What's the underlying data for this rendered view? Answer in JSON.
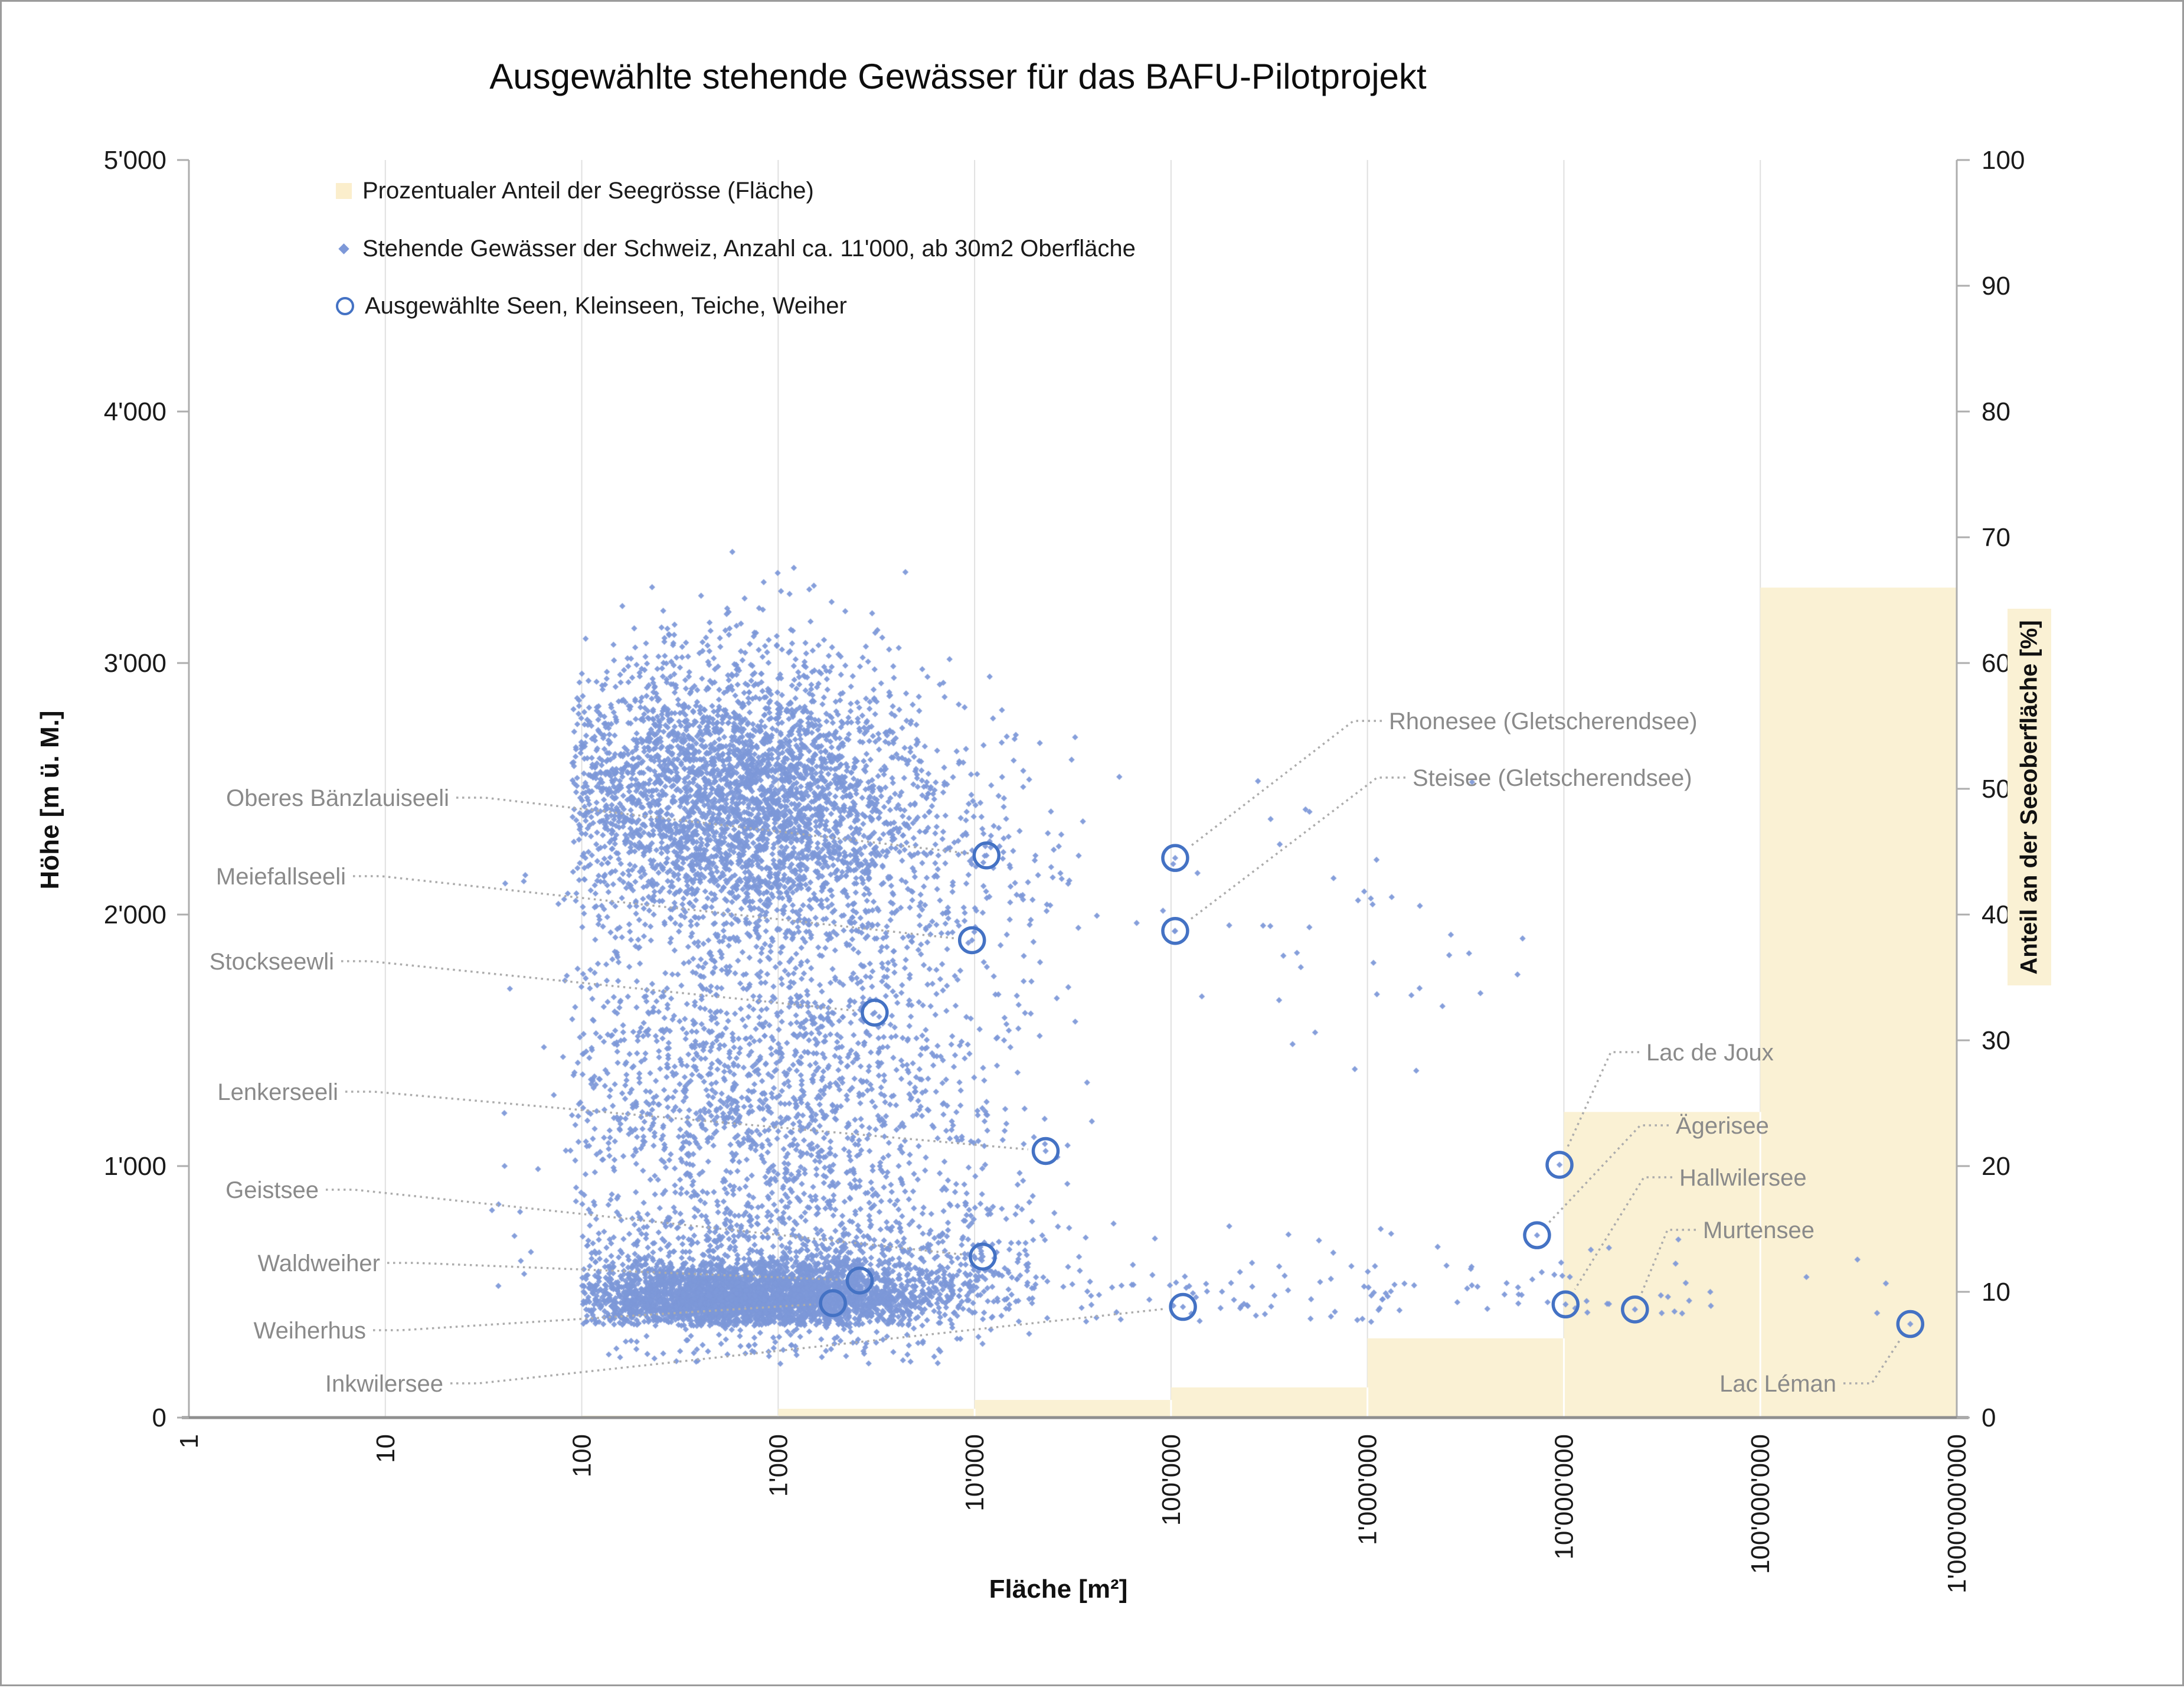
{
  "window": {
    "background": "#FFFFFF",
    "border_color": "#9B9B9B"
  },
  "title": "Ausgewählte stehende Gewässer für das BAFU-Pilotprojekt",
  "legend": {
    "items": [
      {
        "label": "Prozentualer Anteil der Seegrösse (Fläche)",
        "marker": "yellow-square",
        "color": "#FBEECC"
      },
      {
        "label": "Stehende Gewässer der Schweiz, Anzahl ca. 11'000, ab 30m2 Oberfläche",
        "marker": "blue-diamond",
        "color": "#7D98D8"
      },
      {
        "label": "Ausgewählte Seen, Kleinseen, Teiche, Weiher",
        "marker": "blue-ring",
        "color": "#4472C4"
      }
    ]
  },
  "colors": {
    "grid": "#E0E0E0",
    "grid_on_area": "#FFFFFF",
    "axis_line": "#ADADAD",
    "baseline": "#8F8F8F",
    "tick_text": "#1A1A1A",
    "lake_label": "#8A8A8A",
    "connector": "#ACACAC",
    "scatter": "#7D98D8",
    "selected_ring": "#4472C4",
    "area_fill": "#FAF1D4"
  },
  "chart_data": {
    "type": "scatter",
    "x_axis": {
      "label": "Fläche [m²]",
      "scale": "log10",
      "min": 1,
      "max": 1000000000,
      "tick_labels": [
        "1",
        "10",
        "100",
        "1'000",
        "10'000",
        "100'000",
        "1'000'000",
        "10'000'000",
        "100'000'000",
        "1'000'000'000"
      ]
    },
    "y_axis_left": {
      "label": "Höhe [m ü. M.]",
      "min": 0,
      "max": 5000,
      "tick_labels": [
        "0",
        "1'000",
        "2'000",
        "3'000",
        "4'000",
        "5'000"
      ]
    },
    "y_axis_right": {
      "label": "Anteil an der Seeoberfläche [%]",
      "min": 0,
      "max": 100,
      "tick_labels": [
        "0",
        "10",
        "20",
        "30",
        "40",
        "50",
        "60",
        "70",
        "80",
        "90",
        "100"
      ]
    },
    "area_share_steps": {
      "series_name": "Prozentualer Anteil der Seegrösse (Fläche)",
      "bins": [
        {
          "from_m2": 100,
          "to_m2": 1000,
          "percent": 0.15
        },
        {
          "from_m2": 1000,
          "to_m2": 10000,
          "percent": 0.7
        },
        {
          "from_m2": 10000,
          "to_m2": 100000,
          "percent": 1.4
        },
        {
          "from_m2": 100000,
          "to_m2": 1000000,
          "percent": 2.4
        },
        {
          "from_m2": 1000000,
          "to_m2": 10000000,
          "percent": 6.3
        },
        {
          "from_m2": 10000000,
          "to_m2": 100000000,
          "percent": 24.3
        },
        {
          "from_m2": 100000000,
          "to_m2": 1000000000,
          "percent": 66
        }
      ]
    },
    "background_scatter": {
      "series_name": "Stehende Gewässer der Schweiz, Anzahl ca. 11'000, ab 30m2 Oberfläche",
      "approx_count": 11000,
      "seed": 20240613,
      "clusters": [
        {
          "n": 3200,
          "log_area_mean": 2.75,
          "log_area_sd": 0.5,
          "log_area_min": 1.95,
          "log_area_max": 4.6,
          "alt_mean": 2480,
          "alt_sd": 260,
          "alt_min": 1900,
          "alt_max": 3150
        },
        {
          "n": 750,
          "log_area_mean": 3.2,
          "log_area_sd": 0.6,
          "log_area_min": 2.0,
          "log_area_max": 4.85,
          "alt_mean": 2130,
          "alt_sd": 260,
          "alt_min": 1500,
          "alt_max": 2850
        },
        {
          "n": 70,
          "log_area_mean": 2.9,
          "log_area_sd": 0.45,
          "log_area_min": 2.1,
          "log_area_max": 4.0,
          "alt_mean": 3080,
          "alt_sd": 170,
          "alt_min": 2860,
          "alt_max": 3480
        },
        {
          "n": 1500,
          "log_area_mean": 2.9,
          "log_area_sd": 0.62,
          "log_area_min": 1.95,
          "log_area_max": 4.6,
          "alt_mean": 1280,
          "alt_sd": 330,
          "alt_min": 640,
          "alt_max": 1980
        },
        {
          "n": 3300,
          "log_area_mean": 2.85,
          "log_area_sd": 0.48,
          "log_area_min": 2.0,
          "log_area_max": 4.4,
          "alt_mean": 475,
          "alt_sd": 70,
          "alt_min": 365,
          "alt_max": 690
        },
        {
          "n": 950,
          "log_area_mean": 3.1,
          "log_area_sd": 0.65,
          "log_area_min": 2.0,
          "log_area_max": 4.75,
          "alt_mean": 610,
          "alt_sd": 145,
          "alt_min": 380,
          "alt_max": 980
        },
        {
          "n": 110,
          "log_area_mean": 3.0,
          "log_area_sd": 0.6,
          "log_area_min": 2.1,
          "log_area_max": 4.3,
          "alt_mean": 300,
          "alt_sd": 55,
          "alt_min": 200,
          "alt_max": 372
        },
        {
          "n": 125,
          "log_area_mean": 5.6,
          "log_area_sd": 1.15,
          "log_area_min": 4.45,
          "log_area_max": 8.85,
          "alt_mean": 490,
          "alt_sd": 100,
          "alt_min": 375,
          "alt_max": 880
        },
        {
          "n": 42,
          "log_area_mean": 5.9,
          "log_area_sd": 0.55,
          "log_area_min": 4.85,
          "log_area_max": 7.1,
          "alt_mean": 1850,
          "alt_sd": 380,
          "alt_min": 1320,
          "alt_max": 2680
        },
        {
          "n": 28,
          "log_area_mean": 1.8,
          "log_area_sd": 0.18,
          "log_area_min": 1.5,
          "log_area_max": 2.02,
          "alt_mean": 1400,
          "alt_sd": 820,
          "alt_min": 420,
          "alt_max": 2750
        }
      ]
    },
    "selected_lakes": {
      "series_name": "Ausgewählte Seen, Kleinseen, Teiche, Weiher",
      "points": [
        {
          "name": "Oberes Bänzlauiseeli",
          "area_m2": 11500,
          "altitude_m": 2235,
          "label_anchor": "end",
          "label_x": 758,
          "label_y": 1348
        },
        {
          "name": "Meiefallseeli",
          "area_m2": 9700,
          "altitude_m": 1898,
          "label_anchor": "end",
          "label_x": 583,
          "label_y": 1481
        },
        {
          "name": "Stockseewli",
          "area_m2": 3100,
          "altitude_m": 1610,
          "label_anchor": "end",
          "label_x": 563,
          "label_y": 1625
        },
        {
          "name": "Lenkerseeli",
          "area_m2": 23000,
          "altitude_m": 1060,
          "label_anchor": "end",
          "label_x": 570,
          "label_y": 1846
        },
        {
          "name": "Geistsee",
          "area_m2": 11000,
          "altitude_m": 640,
          "label_anchor": "end",
          "label_x": 537,
          "label_y": 2012
        },
        {
          "name": "Waldweiher",
          "area_m2": 2600,
          "altitude_m": 545,
          "label_anchor": "end",
          "label_x": 641,
          "label_y": 2136
        },
        {
          "name": "Weiherhus",
          "area_m2": 1900,
          "altitude_m": 455,
          "label_anchor": "end",
          "label_x": 617,
          "label_y": 2250
        },
        {
          "name": "Inkwilersee",
          "area_m2": 115000,
          "altitude_m": 440,
          "label_anchor": "end",
          "label_x": 748,
          "label_y": 2340
        },
        {
          "name": "Rhonesee (Gletscherendsee)",
          "area_m2": 105000,
          "altitude_m": 2225,
          "label_anchor": "start",
          "label_x": 2350,
          "label_y": 1218
        },
        {
          "name": "Steisee (Gletscherendsee)",
          "area_m2": 105000,
          "altitude_m": 1935,
          "label_anchor": "start",
          "label_x": 2390,
          "label_y": 1314
        },
        {
          "name": "Lac de Joux",
          "area_m2": 9500000,
          "altitude_m": 1005,
          "label_anchor": "start",
          "label_x": 2786,
          "label_y": 1779
        },
        {
          "name": "Ägerisee",
          "area_m2": 7300000,
          "altitude_m": 725,
          "label_anchor": "start",
          "label_x": 2836,
          "label_y": 1903
        },
        {
          "name": "Hallwilersee",
          "area_m2": 10200000,
          "altitude_m": 450,
          "label_anchor": "start",
          "label_x": 2842,
          "label_y": 1991
        },
        {
          "name": "Murtensee",
          "area_m2": 23000000,
          "altitude_m": 430,
          "label_anchor": "start",
          "label_x": 2882,
          "label_y": 2080
        },
        {
          "name": "Lac Léman",
          "area_m2": 580000000,
          "altitude_m": 372,
          "label_anchor": "end",
          "label_x": 3108,
          "label_y": 2340
        }
      ]
    }
  }
}
